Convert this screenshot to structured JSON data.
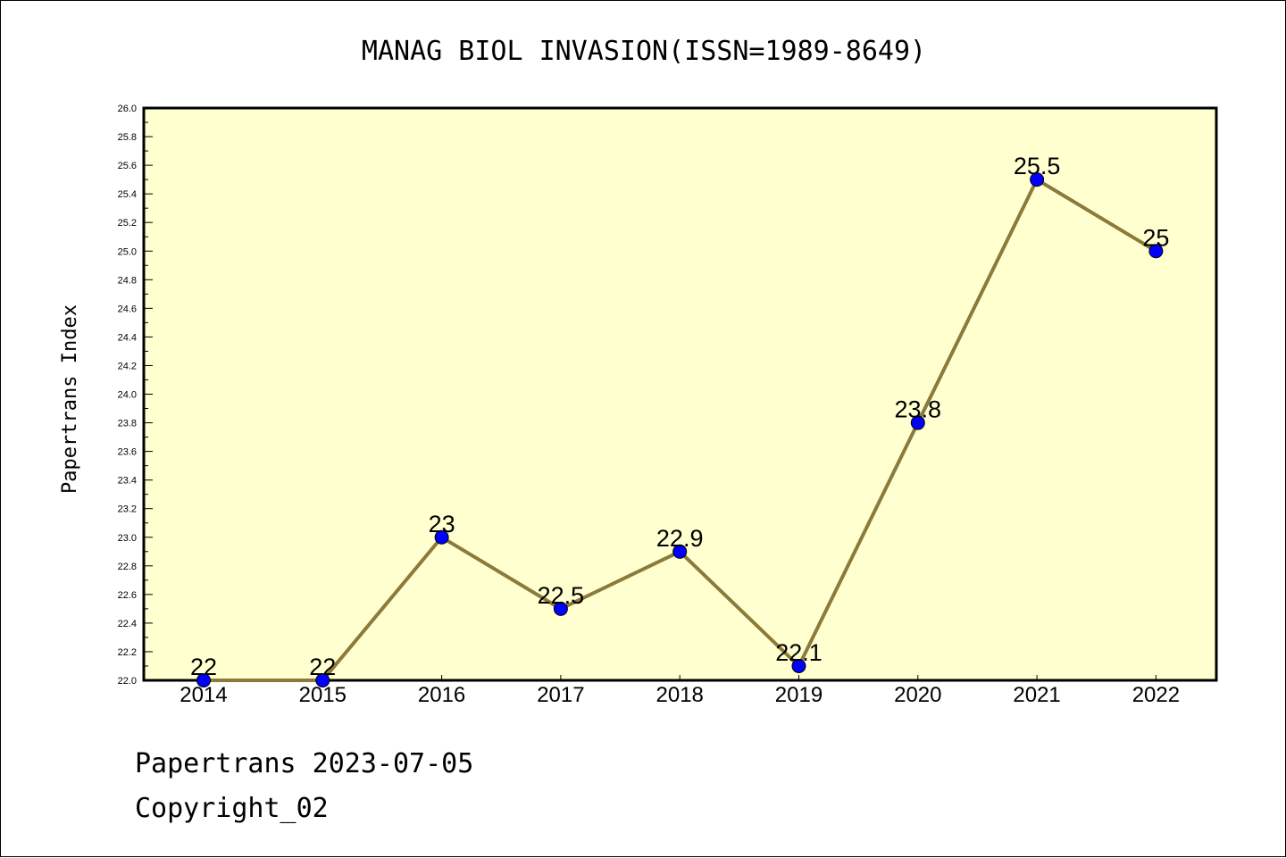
{
  "chart_data": {
    "type": "line",
    "title": "MANAG BIOL INVASION(ISSN=1989-8649)",
    "ylabel": "Papertrans Index",
    "xlabel": "",
    "categories": [
      "2014",
      "2015",
      "2016",
      "2017",
      "2018",
      "2019",
      "2020",
      "2021",
      "2022"
    ],
    "series": [
      {
        "values": [
          22,
          22,
          23,
          22.5,
          22.9,
          22.1,
          23.8,
          25.5,
          25
        ]
      }
    ],
    "data_labels": [
      "22",
      "22",
      "23",
      "22.5",
      "22.9",
      "22.1",
      "23.8",
      "25.5",
      "25"
    ],
    "ylim": [
      22.0,
      26.0
    ],
    "yticks": [
      "22.0",
      "22.2",
      "22.4",
      "22.6",
      "22.8",
      "23.0",
      "23.2",
      "23.4",
      "23.6",
      "23.8",
      "24.0",
      "24.2",
      "24.4",
      "24.6",
      "24.8",
      "25.0",
      "25.2",
      "25.4",
      "25.6",
      "25.8",
      "26.0"
    ],
    "grid": false,
    "colors": {
      "plot_background": "#ffffd0",
      "line": "#8b7a3a",
      "marker": "#0000ff"
    }
  },
  "footer": {
    "line1": "Papertrans 2023-07-05",
    "line2": "Copyright_02"
  }
}
